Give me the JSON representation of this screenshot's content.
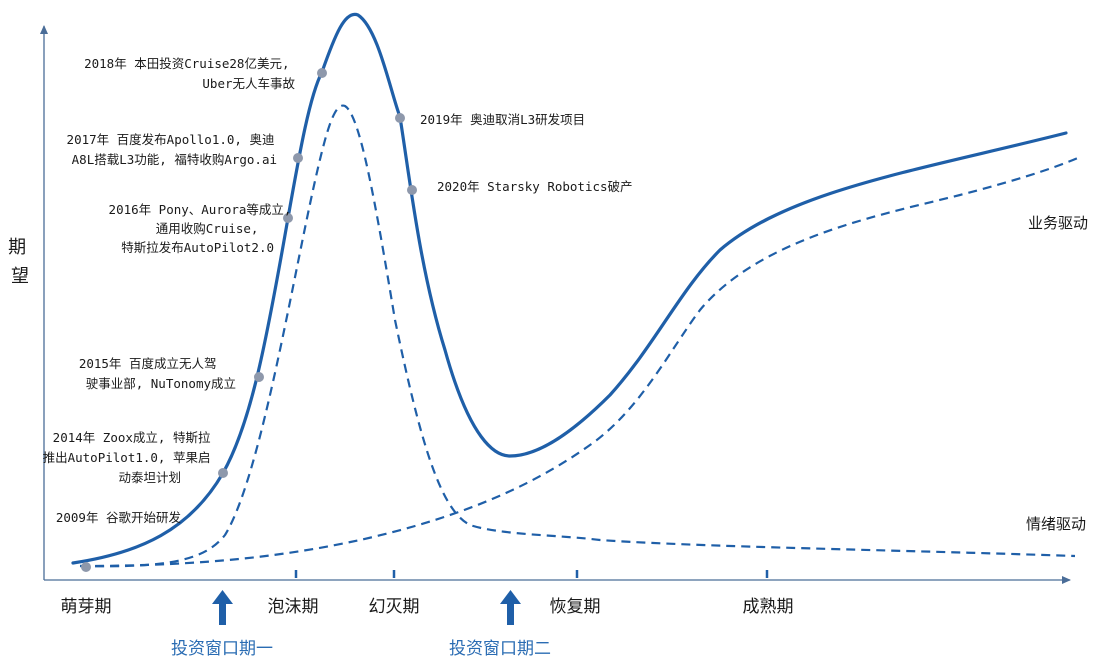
{
  "diagram": {
    "y_axis_title": "期望",
    "phases": [
      "萌芽期",
      "泡沫期",
      "幻灭期",
      "恢复期",
      "成熟期"
    ],
    "investment_windows": [
      "投资窗口期一",
      "投资窗口期二"
    ],
    "curve_labels": {
      "business_driven": "业务驱动",
      "emotion_driven": "情绪驱动"
    },
    "milestones": [
      {
        "lines": [
          "2009年 谷歌开始研发"
        ]
      },
      {
        "lines": [
          "2014年 Zoox成立, 特斯拉",
          "推出AutoPilot1.0, 苹果启",
          "动泰坦计划"
        ]
      },
      {
        "lines": [
          "2015年 百度成立无人驾",
          "驶事业部, NuTonomy成立"
        ]
      },
      {
        "lines": [
          "2016年 Pony、Aurora等成立,",
          "通用收购Cruise,",
          "特斯拉发布AutoPilot2.0"
        ]
      },
      {
        "lines": [
          "2017年 百度发布Apollo1.0, 奥迪",
          "A8L搭载L3功能, 福特收购Argo.ai"
        ]
      },
      {
        "lines": [
          "2018年 本田投资Cruise28亿美元,",
          "Uber无人车事故"
        ]
      },
      {
        "lines": [
          "2019年 奥迪取消L3研发项目"
        ]
      },
      {
        "lines": [
          "2020年 Starsky Robotics破产"
        ]
      }
    ],
    "colors": {
      "curve": "#1f5fa8",
      "axis": "#4a6d98",
      "milestone_dot": "#8e98ab",
      "window_text": "#2a6cb3",
      "arrow": "#1f5fa8"
    }
  }
}
